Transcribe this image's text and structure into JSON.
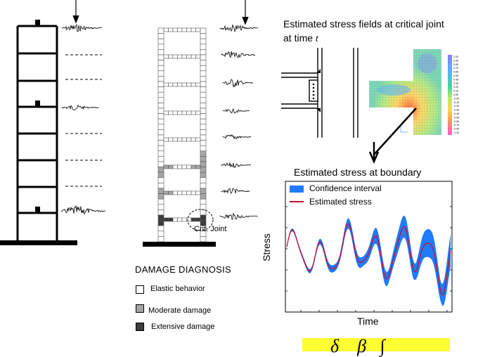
{
  "panels": {
    "stress_fields": {
      "title_line1": "Estimated stress fields at critical joint",
      "title_line2_prefix": "at time ",
      "title_line2_var": "t"
    },
    "boundary": {
      "title": "Estimated stress at boundary",
      "legend_confidence": "Confidence interval",
      "legend_estimated": "Estimated stress",
      "ylabel": "Stress",
      "xlabel": "Time"
    },
    "damage": {
      "heading": "DAMAGE DIAGNOSIS",
      "elastic": "Elastic behavior",
      "moderate": "Moderate  damage",
      "extensive": "Extensive damage",
      "crit_joint": "Crit. Joint"
    },
    "colorbar_labels": [
      "1.00",
      "0.95",
      "0.85",
      "0.75",
      "0.65",
      "0.55",
      "0.45",
      "0.35",
      "0.25",
      "0.15",
      "0.05",
      "-0.05",
      "-0.15",
      "-0.25",
      "-0.35",
      "-0.45",
      "-0.55",
      "-0.65",
      "-0.75",
      "-0.85",
      "-1.00"
    ],
    "formula": "δ    β   ∫"
  },
  "colors": {
    "confidence": "#1f7bff",
    "estimated": "#c8102e",
    "moderate": "#a6a6a6",
    "extensive": "#3c3c3c",
    "formula_bg": "#ffff33"
  }
}
